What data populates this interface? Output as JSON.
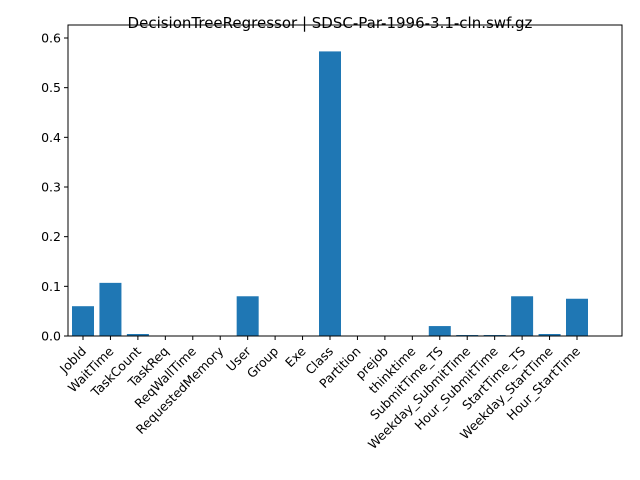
{
  "chart_data": {
    "type": "bar",
    "title": "DecisionTreeRegressor | SDSC-Par-1996-3.1-cln.swf.gz",
    "xlabel": "",
    "ylabel": "",
    "ylim": [
      0,
      0.6
    ],
    "yticks": [
      "0.0",
      "0.1",
      "0.2",
      "0.3",
      "0.4",
      "0.5",
      "0.6"
    ],
    "categories": [
      "JobId",
      "WaitTime",
      "TaskCount",
      "TaskReq",
      "ReqWallTime",
      "RequestedMemory",
      "User",
      "Group",
      "Exe",
      "Class",
      "Partition",
      "prejob",
      "thinktime",
      "SubmitTime_TS",
      "Weekday_SubmitTime",
      "Hour_SubmitTime",
      "StartTime_TS",
      "Weekday_StartTime",
      "Hour_StartTime"
    ],
    "values": [
      0.06,
      0.107,
      0.004,
      0.0,
      0.0,
      0.0,
      0.08,
      0.0,
      0.0,
      0.573,
      0.0,
      0.0,
      0.0,
      0.02,
      0.002,
      0.002,
      0.08,
      0.004,
      0.075
    ],
    "bar_color": "#1f77b4",
    "grid": false,
    "legend": "none"
  }
}
